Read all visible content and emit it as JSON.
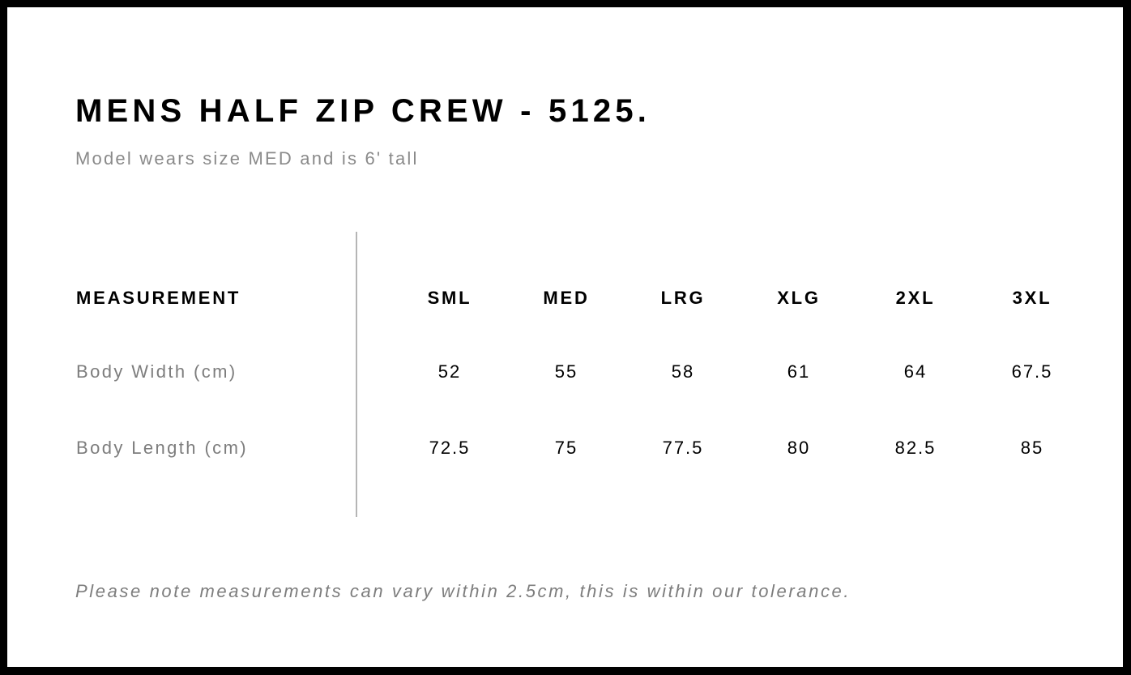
{
  "title": "MENS HALF ZIP CREW - 5125.",
  "subtitle": "Model wears size MED and is 6' tall",
  "table": {
    "header_label": "MEASUREMENT",
    "sizes": [
      "SML",
      "MED",
      "LRG",
      "XLG",
      "2XL",
      "3XL"
    ],
    "rows": [
      {
        "label": "Body Width (cm)",
        "values": [
          "52",
          "55",
          "58",
          "61",
          "64",
          "67.5"
        ]
      },
      {
        "label": "Body Length (cm)",
        "values": [
          "72.5",
          "75",
          "77.5",
          "80",
          "82.5",
          "85"
        ]
      }
    ]
  },
  "note": "Please note measurements can vary within 2.5cm, this is within our tolerance."
}
